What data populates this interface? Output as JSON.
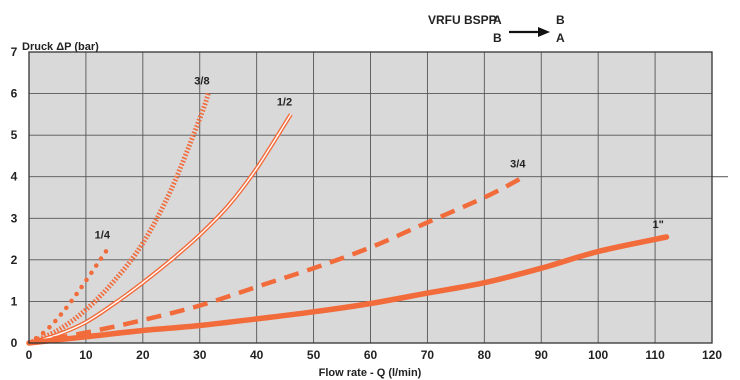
{
  "chart_data": {
    "type": "line",
    "title_line1_label": "VRFU BSPP",
    "title_line1_from": "A",
    "title_line1_to": "B",
    "title_line2_from": "B",
    "title_line2_to": "A",
    "xlabel": "Flow rate - Q (l/min)",
    "ylabel": "Druck ΔP (bar)",
    "xlim": [
      0,
      120
    ],
    "ylim": [
      0,
      7
    ],
    "xticks": [
      0,
      10,
      20,
      30,
      40,
      50,
      60,
      70,
      80,
      90,
      100,
      110,
      120
    ],
    "yticks": [
      0,
      1,
      2,
      3,
      4,
      5,
      6,
      7
    ],
    "grid": true,
    "colors": {
      "series": "#f26b3a",
      "plot_bg": "#d9d9d9",
      "grid": "#555555"
    },
    "series": [
      {
        "name": "1/4",
        "style": "dotted",
        "x": [
          0,
          3,
          6,
          9,
          12,
          14
        ],
        "y": [
          0,
          0.3,
          0.75,
          1.3,
          1.9,
          2.3
        ]
      },
      {
        "name": "3/8",
        "style": "hatched",
        "x": [
          0,
          5,
          10,
          15,
          20,
          25,
          30,
          31.5
        ],
        "y": [
          0,
          0.3,
          0.8,
          1.5,
          2.4,
          3.7,
          5.4,
          6.0
        ]
      },
      {
        "name": "1/2",
        "style": "double",
        "x": [
          0,
          5,
          10,
          15,
          20,
          25,
          30,
          35,
          40,
          46
        ],
        "y": [
          0,
          0.2,
          0.5,
          0.95,
          1.45,
          2.0,
          2.6,
          3.3,
          4.2,
          5.5
        ]
      },
      {
        "name": "3/4",
        "style": "dashed",
        "x": [
          0,
          10,
          20,
          30,
          40,
          50,
          60,
          70,
          80,
          87
        ],
        "y": [
          0,
          0.25,
          0.55,
          0.9,
          1.35,
          1.8,
          2.3,
          2.9,
          3.5,
          4.0
        ]
      },
      {
        "name": "1\"",
        "style": "solid",
        "x": [
          0,
          10,
          20,
          30,
          40,
          50,
          60,
          70,
          80,
          90,
          100,
          112
        ],
        "y": [
          0,
          0.15,
          0.3,
          0.42,
          0.58,
          0.75,
          0.95,
          1.2,
          1.45,
          1.8,
          2.2,
          2.55
        ]
      }
    ]
  }
}
